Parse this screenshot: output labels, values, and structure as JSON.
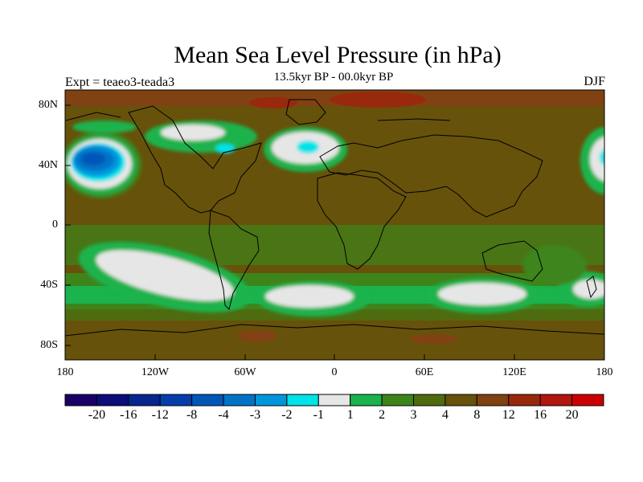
{
  "title": "Mean Sea Level Pressure (in hPa)",
  "subtitle": "13.5kyr BP - 00.0kyr BP",
  "experiment": "Expt = teaeo3-teada3",
  "season": "DJF",
  "y_axis": {
    "ticks": [
      "80N",
      "40N",
      "0",
      "40S",
      "80S"
    ]
  },
  "x_axis": {
    "ticks": [
      "180",
      "120W",
      "60W",
      "0",
      "60E",
      "120E",
      "180"
    ]
  },
  "colorbar": {
    "colors": [
      "#1a0066",
      "#0c0c7a",
      "#07268f",
      "#043eab",
      "#0057b8",
      "#0073c7",
      "#0096db",
      "#00e3e8",
      "#e6e6e6",
      "#1ab34d",
      "#3d851a",
      "#4f6b0f",
      "#66520a",
      "#804212",
      "#99290d",
      "#b3160f",
      "#cc0000"
    ],
    "labels": [
      "-20",
      "-16",
      "-12",
      "-8",
      "-4",
      "-3",
      "-2",
      "-1",
      "1",
      "2",
      "3",
      "4",
      "8",
      "12",
      "16",
      "20"
    ]
  }
}
